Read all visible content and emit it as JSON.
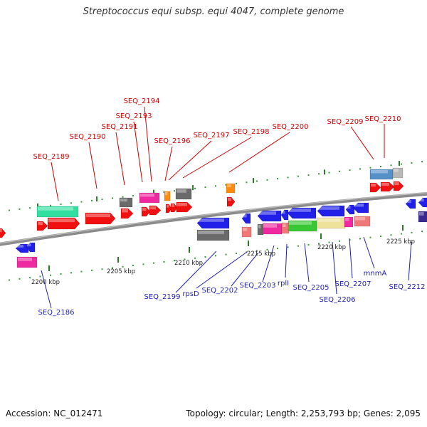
{
  "title": "Streptococcus equi subsp. equi 4047, complete genome",
  "footer": {
    "accession": "Accession: NC_012471",
    "summary": "Topology: circular; Length: 2,253,793 bp; Genes: 2,095"
  },
  "colors": {
    "upper_label": "#cc0000",
    "lower_label": "#1f1fb0",
    "tick_major": "#2a7a2a",
    "tick_minor": "#3a9a3a",
    "backbone": "#8c8c8c"
  },
  "kbp_ticks": [
    "2200 kbp",
    "2205 kbp",
    "2210 kbp",
    "2215 kbp",
    "2220 kbp",
    "2225 kbp"
  ],
  "upper_labels": [
    "SEQ_2189",
    "SEQ_2190",
    "SEQ_2191",
    "SEQ_2193",
    "SEQ_2194",
    "SEQ_2196",
    "SEQ_2197",
    "SEQ_2198",
    "SEQ_2200",
    "SEQ_2209",
    "SEQ_2210"
  ],
  "lower_labels": [
    "SEQ_2186",
    "SEQ_2199",
    "rpsD",
    "SEQ_2202",
    "SEQ_2203",
    "rplI",
    "SEQ_2205",
    "SEQ_2206",
    "SEQ_2207",
    "mnmA",
    "SEQ_2212"
  ]
}
